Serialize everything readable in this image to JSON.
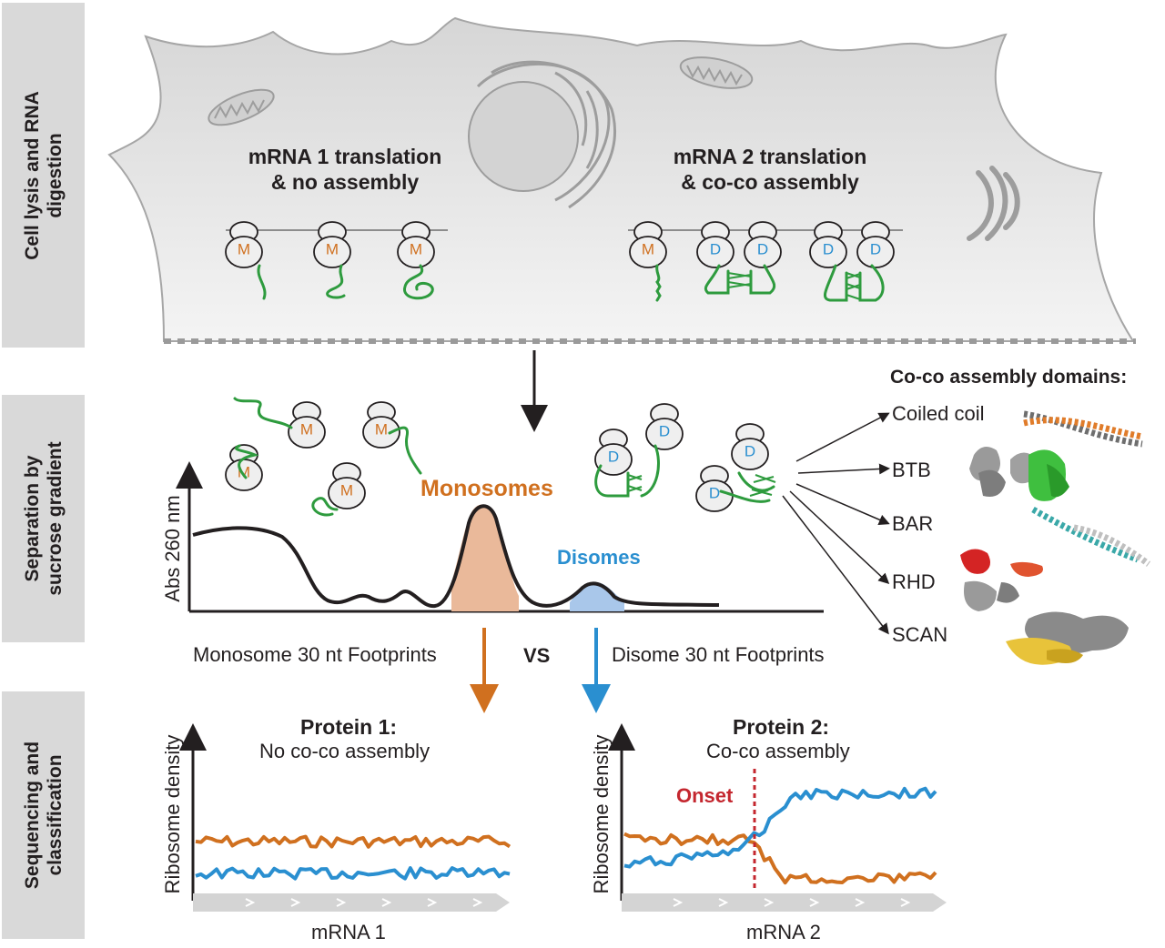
{
  "panels": {
    "lysis": "Cell lysis and RNA\ndigestion",
    "separation": "Separation by\nsucrose gradient",
    "sequencing": "Sequencing and\nclassification"
  },
  "cell": {
    "mrna1_title": "mRNA 1 translation\n& no assembly",
    "mrna2_title": "mRNA 2 translation\n& co-co assembly"
  },
  "ribosome_labels": {
    "mono": "M",
    "di": "D"
  },
  "gradient": {
    "y_axis": "Abs 260 nm",
    "monosomes": "Monosomes",
    "disomes": "Disomes"
  },
  "domains": {
    "heading": "Co-co assembly domains:",
    "items": [
      "Coiled coil",
      "BTB",
      "BAR",
      "RHD",
      "SCAN"
    ]
  },
  "footprints": {
    "mono": "Monosome 30 nt Footprints",
    "vs": "VS",
    "di": "Disome 30 nt Footprints"
  },
  "protein1": {
    "title": "Protein 1:",
    "subtitle": "No co-co assembly",
    "y_axis": "Ribosome density",
    "x_axis": "mRNA 1"
  },
  "protein2": {
    "title": "Protein 2:",
    "subtitle": "Co-co assembly",
    "y_axis": "Ribosome density",
    "x_axis": "mRNA 2",
    "onset": "Onset"
  },
  "colors": {
    "monosome": "#d0701f",
    "disome": "#2a8fd0",
    "peptide": "#2e9b3e",
    "onset": "#c4272f",
    "cell_fill": "#e1e1e1",
    "panel_bg": "#d9d9d9"
  }
}
